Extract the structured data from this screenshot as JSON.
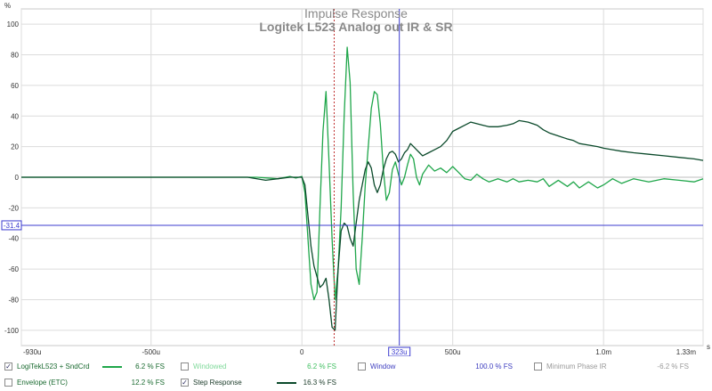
{
  "chart_data": {
    "type": "line",
    "title": "Impulse Response",
    "subtitle": "Logitek L523 Analog out IR & SR",
    "ylabel": "%",
    "xunit": "s",
    "xlim": [
      -930,
      1330
    ],
    "ylim": [
      -110,
      110
    ],
    "x_ticks": [
      {
        "v": -930,
        "label": "-930u"
      },
      {
        "v": -500,
        "label": "-500u"
      },
      {
        "v": 0,
        "label": "0"
      },
      {
        "v": 500,
        "label": "500u"
      },
      {
        "v": 1000,
        "label": "1.0m"
      },
      {
        "v": 1330,
        "label": "1.33m"
      }
    ],
    "y_ticks": [
      100,
      80,
      60,
      40,
      20,
      0,
      -20,
      -40,
      -60,
      -80,
      -100
    ],
    "cursor_v": {
      "x": 323,
      "label": "323u"
    },
    "cursor_h": {
      "y": -31.4,
      "label": "-31.4"
    },
    "marker_x": 107,
    "series": [
      {
        "name": "LogiTekL523 + SndCrd",
        "color": "#1fa64a",
        "points": [
          [
            -930,
            0
          ],
          [
            -600,
            0
          ],
          [
            -300,
            0
          ],
          [
            -150,
            0
          ],
          [
            -80,
            -1
          ],
          [
            -40,
            0.5
          ],
          [
            -20,
            -0.5
          ],
          [
            0,
            0.5
          ],
          [
            10,
            -10
          ],
          [
            20,
            -40
          ],
          [
            30,
            -70
          ],
          [
            40,
            -80
          ],
          [
            50,
            -75
          ],
          [
            60,
            -20
          ],
          [
            70,
            30
          ],
          [
            80,
            56
          ],
          [
            90,
            10
          ],
          [
            100,
            -40
          ],
          [
            110,
            -80
          ],
          [
            120,
            -60
          ],
          [
            130,
            -20
          ],
          [
            140,
            40
          ],
          [
            150,
            85
          ],
          [
            160,
            62
          ],
          [
            170,
            -10
          ],
          [
            180,
            -60
          ],
          [
            190,
            -70
          ],
          [
            200,
            -40
          ],
          [
            210,
            -5
          ],
          [
            220,
            20
          ],
          [
            230,
            45
          ],
          [
            240,
            56
          ],
          [
            250,
            54
          ],
          [
            260,
            35
          ],
          [
            270,
            5
          ],
          [
            280,
            -15
          ],
          [
            290,
            -10
          ],
          [
            300,
            5
          ],
          [
            310,
            10
          ],
          [
            320,
            2
          ],
          [
            330,
            -5
          ],
          [
            340,
            0
          ],
          [
            350,
            8
          ],
          [
            360,
            15
          ],
          [
            370,
            12
          ],
          [
            380,
            0
          ],
          [
            390,
            -5
          ],
          [
            400,
            2
          ],
          [
            420,
            8
          ],
          [
            440,
            4
          ],
          [
            460,
            6
          ],
          [
            480,
            3
          ],
          [
            500,
            7
          ],
          [
            520,
            3
          ],
          [
            540,
            -1
          ],
          [
            560,
            -2
          ],
          [
            580,
            2
          ],
          [
            600,
            -1
          ],
          [
            620,
            -3
          ],
          [
            650,
            -1
          ],
          [
            680,
            -3
          ],
          [
            700,
            -1
          ],
          [
            720,
            -3
          ],
          [
            750,
            -2
          ],
          [
            780,
            -3
          ],
          [
            800,
            -1
          ],
          [
            820,
            -6
          ],
          [
            850,
            -2
          ],
          [
            880,
            -6
          ],
          [
            900,
            -3
          ],
          [
            920,
            -7
          ],
          [
            950,
            -3
          ],
          [
            980,
            -7
          ],
          [
            1000,
            -5
          ],
          [
            1030,
            -1
          ],
          [
            1060,
            -4
          ],
          [
            1100,
            -1
          ],
          [
            1150,
            -3
          ],
          [
            1200,
            -1
          ],
          [
            1250,
            -2
          ],
          [
            1300,
            -3
          ],
          [
            1330,
            -1
          ]
        ]
      },
      {
        "name": "Step Response",
        "color": "#0b4a2b",
        "points": [
          [
            -930,
            0
          ],
          [
            -600,
            0
          ],
          [
            -300,
            0
          ],
          [
            -180,
            0
          ],
          [
            -120,
            -2
          ],
          [
            -80,
            -1
          ],
          [
            -40,
            0
          ],
          [
            0,
            0
          ],
          [
            10,
            -5
          ],
          [
            20,
            -25
          ],
          [
            30,
            -45
          ],
          [
            40,
            -58
          ],
          [
            50,
            -65
          ],
          [
            60,
            -72
          ],
          [
            70,
            -70
          ],
          [
            80,
            -66
          ],
          [
            90,
            -80
          ],
          [
            100,
            -98
          ],
          [
            110,
            -100
          ],
          [
            120,
            -60
          ],
          [
            130,
            -35
          ],
          [
            140,
            -30
          ],
          [
            150,
            -32
          ],
          [
            160,
            -40
          ],
          [
            170,
            -45
          ],
          [
            180,
            -30
          ],
          [
            190,
            -15
          ],
          [
            200,
            -5
          ],
          [
            210,
            5
          ],
          [
            220,
            10
          ],
          [
            230,
            6
          ],
          [
            240,
            -5
          ],
          [
            250,
            -10
          ],
          [
            260,
            -5
          ],
          [
            270,
            5
          ],
          [
            280,
            12
          ],
          [
            290,
            16
          ],
          [
            300,
            17
          ],
          [
            310,
            15
          ],
          [
            320,
            10
          ],
          [
            330,
            12
          ],
          [
            340,
            16
          ],
          [
            350,
            18
          ],
          [
            360,
            22
          ],
          [
            370,
            20
          ],
          [
            380,
            18
          ],
          [
            390,
            16
          ],
          [
            400,
            14
          ],
          [
            420,
            16
          ],
          [
            440,
            18
          ],
          [
            460,
            20
          ],
          [
            480,
            24
          ],
          [
            500,
            30
          ],
          [
            520,
            32
          ],
          [
            540,
            34
          ],
          [
            560,
            36
          ],
          [
            580,
            35
          ],
          [
            600,
            34
          ],
          [
            620,
            33
          ],
          [
            650,
            33
          ],
          [
            680,
            34
          ],
          [
            700,
            35
          ],
          [
            720,
            37
          ],
          [
            750,
            36
          ],
          [
            780,
            34
          ],
          [
            800,
            31
          ],
          [
            820,
            29
          ],
          [
            850,
            27
          ],
          [
            880,
            25
          ],
          [
            900,
            24
          ],
          [
            920,
            22
          ],
          [
            950,
            21
          ],
          [
            980,
            20
          ],
          [
            1000,
            19
          ],
          [
            1030,
            18
          ],
          [
            1060,
            17
          ],
          [
            1100,
            16
          ],
          [
            1150,
            15
          ],
          [
            1200,
            14
          ],
          [
            1250,
            13
          ],
          [
            1300,
            12
          ],
          [
            1330,
            11
          ]
        ]
      }
    ]
  },
  "legend": {
    "row1": [
      {
        "label": "LogiTekL523 + SndCrd",
        "checked": true,
        "line_color": "#1fa64a",
        "value": "6.2 % FS",
        "label_color": "#1a6a30",
        "value_color": "#1a6a30"
      },
      {
        "label": "Windowed",
        "checked": false,
        "line_color": "",
        "value": "6.2 % FS",
        "label_color": "#7fd99a",
        "value_color": "#3fbf60"
      },
      {
        "label": "Window",
        "checked": false,
        "line_color": "",
        "value": "100.0 % FS",
        "label_color": "#4040c0",
        "value_color": "#4040c0"
      },
      {
        "label": "Minimum Phase IR",
        "checked": false,
        "line_color": "",
        "value": "-6.2 % FS",
        "label_color": "#999999",
        "value_color": "#999999"
      }
    ],
    "row2": [
      {
        "label": "Envelope (ETC)",
        "checked": false,
        "line_color": "",
        "value": "12.2 % FS",
        "label_color": "#1a6a30",
        "value_color": "#1a6a30"
      },
      {
        "label": "Step Response",
        "checked": true,
        "line_color": "#0b4a2b",
        "value": "16.3 % FS",
        "label_color": "#1a3a28",
        "value_color": "#1a3a28"
      }
    ]
  },
  "check_glyph": "✓",
  "colors": {
    "grid": "#dcdcdc",
    "zero_line": "#bdbdbd",
    "cursor": "#3b3bcf",
    "marker": "#c03030",
    "axis_text": "#333333",
    "title": "#8a8a8a"
  }
}
